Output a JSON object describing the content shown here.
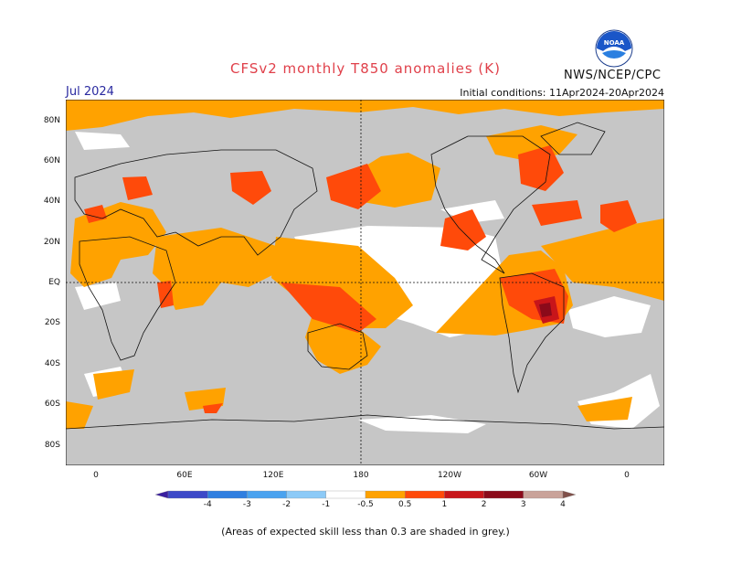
{
  "header": {
    "title": "CFSv2 monthly T850 anomalies (K)",
    "month": "Jul 2024",
    "initial_conditions": "Initial conditions: 11Apr2024-20Apr2024",
    "agency": "NWS/NCEP/CPC",
    "logo_text": "NOAA"
  },
  "axes": {
    "lat_labels": [
      "80N",
      "60N",
      "40N",
      "20N",
      "EQ",
      "20S",
      "40S",
      "60S",
      "80S"
    ],
    "lon_labels": [
      "0",
      "60E",
      "120E",
      "180",
      "120W",
      "60W",
      "0"
    ]
  },
  "colorbar": {
    "labels": [
      "-4",
      "-3",
      "-2",
      "-1",
      "-0.5",
      "0.5",
      "1",
      "2",
      "3",
      "4"
    ],
    "colors": [
      "#3a1fa0",
      "#3c49c8",
      "#2f7fe0",
      "#4aa3ef",
      "#8ccaf7",
      "#ffffff",
      "#ffa200",
      "#ff4a0a",
      "#c8151a",
      "#8b0a1a",
      "#c9a39a",
      "#80504a"
    ]
  },
  "colors": {
    "skill_grey": "#c6c6c6",
    "ocean_white": "#ffffff",
    "anom_05_1": "#ffa200",
    "anom_1_2": "#ff4a0a",
    "anom_2_3": "#c8151a",
    "anom_3_4": "#8b0a1a"
  },
  "footnote": "(Areas of expected skill less than 0.3 are shaded in grey.)"
}
